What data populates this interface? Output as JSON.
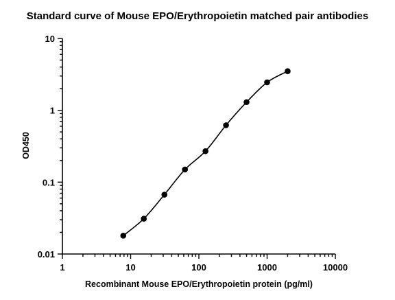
{
  "chart_data": {
    "type": "scatter",
    "title": "Standard curve of Mouse EPO/Erythropoietin matched pair antibodies",
    "xlabel": "Recombinant Mouse EPO/Erythropoietin protein (pg/ml)",
    "ylabel": "OD450",
    "x_scale": "log",
    "y_scale": "log",
    "xlim": [
      1,
      10000
    ],
    "ylim": [
      0.01,
      10
    ],
    "x_ticks": [
      "1",
      "10",
      "100",
      "1000",
      "10000"
    ],
    "y_ticks": [
      "0.01",
      "0.1",
      "1",
      "10"
    ],
    "grid": false,
    "fit_curve": true,
    "series": [
      {
        "x": [
          7.8,
          15.6,
          31.25,
          62.5,
          125,
          250,
          500,
          1000,
          2000
        ],
        "y": [
          0.018,
          0.031,
          0.067,
          0.15,
          0.27,
          0.62,
          1.3,
          2.45,
          3.5
        ]
      }
    ],
    "colors": {
      "marker": "#000000",
      "line": "#000000"
    }
  }
}
